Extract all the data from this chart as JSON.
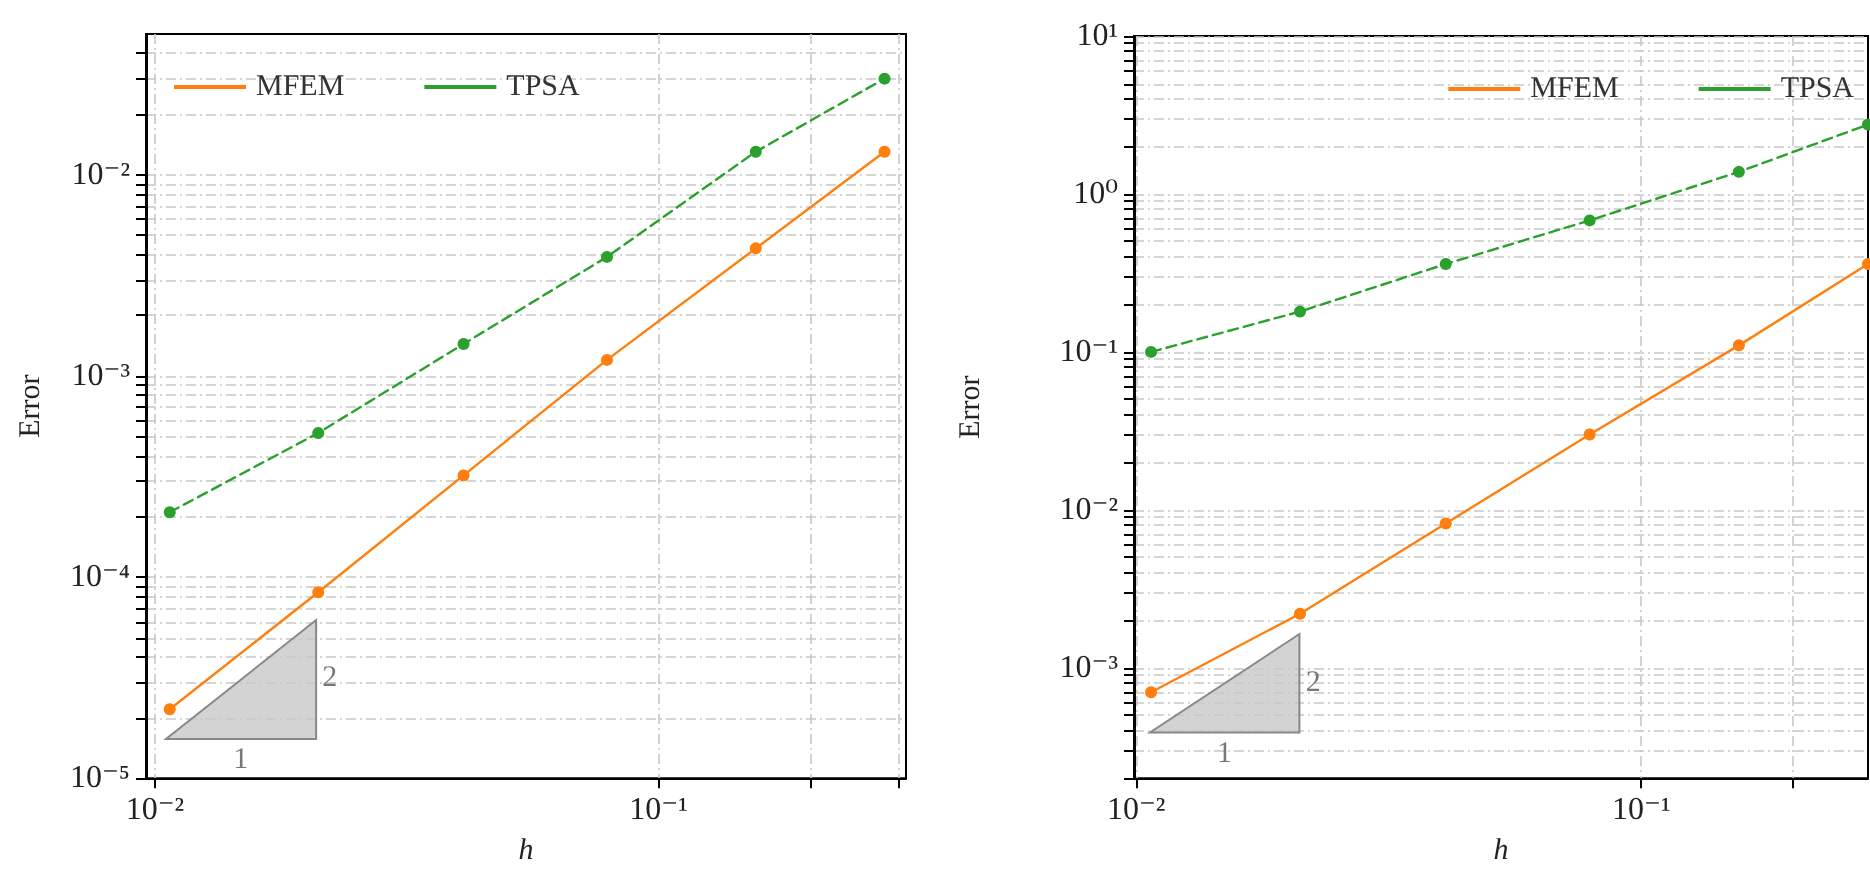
{
  "chart_data": [
    {
      "type": "line",
      "xlabel": "h",
      "ylabel": "Error",
      "log": "xy",
      "grid": true,
      "legend": "top left",
      "marker": "circle",
      "x": [
        0.0107,
        0.0211,
        0.041,
        0.079,
        0.156,
        0.281
      ],
      "series": [
        {
          "name": "MFEM",
          "color": "#ff7f0e",
          "line_style": "solid",
          "values": [
            2.2e-05,
            8.4e-05,
            0.00032,
            0.0012,
            0.0043,
            0.013
          ]
        },
        {
          "name": "TPSA",
          "color": "#2ca02c",
          "line_style": "dashed",
          "values": [
            0.00021,
            0.00052,
            0.00144,
            0.0039,
            0.013,
            0.03
          ]
        }
      ],
      "xlim": [
        0.0096,
        0.31
      ],
      "xticks": [
        {
          "value": 0.01,
          "label": "10⁻²"
        },
        {
          "value": 0.1,
          "label": "10⁻¹"
        },
        {
          "value": 0.2,
          "label": null
        },
        {
          "value": 0.3,
          "label": null
        }
      ],
      "ylim": [
        1e-05,
        0.05
      ],
      "yticks": [
        {
          "value": 1e-05,
          "label": "10⁻⁵"
        },
        {
          "value": 2e-05,
          "label": null
        },
        {
          "value": 3e-05,
          "label": null
        },
        {
          "value": 4e-05,
          "label": null
        },
        {
          "value": 5e-05,
          "label": null
        },
        {
          "value": 6e-05,
          "label": null
        },
        {
          "value": 7e-05,
          "label": null
        },
        {
          "value": 8e-05,
          "label": null
        },
        {
          "value": 9e-05,
          "label": null
        },
        {
          "value": 0.0001,
          "label": "10⁻⁴"
        },
        {
          "value": 0.0002,
          "label": null
        },
        {
          "value": 0.0003,
          "label": null
        },
        {
          "value": 0.0004,
          "label": null
        },
        {
          "value": 0.0005,
          "label": null
        },
        {
          "value": 0.0006,
          "label": null
        },
        {
          "value": 0.0007,
          "label": null
        },
        {
          "value": 0.0008,
          "label": null
        },
        {
          "value": 0.0009,
          "label": null
        },
        {
          "value": 0.001,
          "label": "10⁻³"
        },
        {
          "value": 0.002,
          "label": null
        },
        {
          "value": 0.003,
          "label": null
        },
        {
          "value": 0.004,
          "label": null
        },
        {
          "value": 0.005,
          "label": null
        },
        {
          "value": 0.006,
          "label": null
        },
        {
          "value": 0.007,
          "label": null
        },
        {
          "value": 0.008,
          "label": null
        },
        {
          "value": 0.009,
          "label": null
        },
        {
          "value": 0.01,
          "label": "10⁻²"
        },
        {
          "value": 0.02,
          "label": null
        },
        {
          "value": 0.03,
          "label": null
        },
        {
          "value": 0.04,
          "label": null
        }
      ],
      "annotations": [
        "1",
        "2"
      ]
    },
    {
      "type": "line",
      "xlabel": "h",
      "ylabel": "Error",
      "log": "xy",
      "grid": true,
      "legend": "top right",
      "marker": "circle",
      "x": [
        0.0107,
        0.0211,
        0.041,
        0.079,
        0.156,
        0.281
      ],
      "series": [
        {
          "name": "MFEM",
          "color": "#ff7f0e",
          "line_style": "solid",
          "values": [
            0.0007,
            0.0022,
            0.0082,
            0.03,
            0.11,
            0.36
          ]
        },
        {
          "name": "TPSA",
          "color": "#2ca02c",
          "line_style": "dashed",
          "values": [
            0.1,
            0.18,
            0.36,
            0.68,
            1.38,
            2.75
          ]
        }
      ],
      "xlim": [
        0.0099,
        0.281
      ],
      "xticks": [
        {
          "value": 0.01,
          "label": "10⁻²"
        },
        {
          "value": 0.1,
          "label": "10⁻¹"
        },
        {
          "value": 0.2,
          "label": null
        }
      ],
      "ylim": [
        0.0002,
        10
      ],
      "yticks": [
        {
          "value": 0.0002,
          "label": null
        },
        {
          "value": 0.0003,
          "label": null
        },
        {
          "value": 0.0004,
          "label": null
        },
        {
          "value": 0.0005,
          "label": null
        },
        {
          "value": 0.0006,
          "label": null
        },
        {
          "value": 0.0007,
          "label": null
        },
        {
          "value": 0.0008,
          "label": null
        },
        {
          "value": 0.0009,
          "label": null
        },
        {
          "value": 0.001,
          "label": "10⁻³"
        },
        {
          "value": 0.002,
          "label": null
        },
        {
          "value": 0.003,
          "label": null
        },
        {
          "value": 0.004,
          "label": null
        },
        {
          "value": 0.005,
          "label": null
        },
        {
          "value": 0.006,
          "label": null
        },
        {
          "value": 0.007,
          "label": null
        },
        {
          "value": 0.008,
          "label": null
        },
        {
          "value": 0.009,
          "label": null
        },
        {
          "value": 0.01,
          "label": "10⁻²"
        },
        {
          "value": 0.02,
          "label": null
        },
        {
          "value": 0.03,
          "label": null
        },
        {
          "value": 0.04,
          "label": null
        },
        {
          "value": 0.05,
          "label": null
        },
        {
          "value": 0.06,
          "label": null
        },
        {
          "value": 0.07,
          "label": null
        },
        {
          "value": 0.08,
          "label": null
        },
        {
          "value": 0.09,
          "label": null
        },
        {
          "value": 0.1,
          "label": "10⁻¹"
        },
        {
          "value": 0.2,
          "label": null
        },
        {
          "value": 0.3,
          "label": null
        },
        {
          "value": 0.4,
          "label": null
        },
        {
          "value": 0.5,
          "label": null
        },
        {
          "value": 0.6,
          "label": null
        },
        {
          "value": 0.7,
          "label": null
        },
        {
          "value": 0.8,
          "label": null
        },
        {
          "value": 0.9,
          "label": null
        },
        {
          "value": 1,
          "label": "10⁰"
        },
        {
          "value": 2,
          "label": null
        },
        {
          "value": 3,
          "label": null
        },
        {
          "value": 4,
          "label": null
        },
        {
          "value": 5,
          "label": null
        },
        {
          "value": 6,
          "label": null
        },
        {
          "value": 7,
          "label": null
        },
        {
          "value": 8,
          "label": null
        },
        {
          "value": 9,
          "label": null
        },
        {
          "value": 10,
          "label": "10¹"
        }
      ],
      "annotations": [
        "1",
        "2"
      ]
    }
  ]
}
